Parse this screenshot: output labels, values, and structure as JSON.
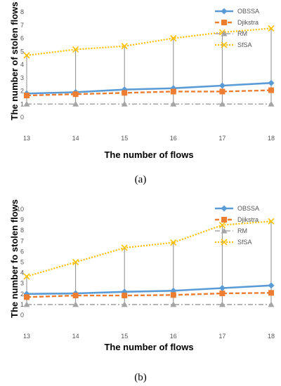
{
  "chart_data": [
    {
      "type": "line",
      "caption": "(a)",
      "x": [
        13,
        14,
        15,
        16,
        17,
        18
      ],
      "xlabel": "The number of flows",
      "ylabel": "The number of stolen flows",
      "ylim": [
        0,
        8
      ],
      "yticks": [
        0,
        1,
        2,
        3,
        4,
        5,
        6,
        7,
        8
      ],
      "grid": "vertical drop lines",
      "legend_position": "top-right",
      "series": [
        {
          "name": "OBSSA",
          "values": [
            1.8,
            1.9,
            2.1,
            2.2,
            2.4,
            2.6
          ],
          "color": "#5b9bd5",
          "marker": "diamond",
          "style": "solid"
        },
        {
          "name": "Djikstra",
          "values": [
            1.65,
            1.75,
            1.85,
            1.95,
            1.95,
            2.05
          ],
          "color": "#ed7d31",
          "marker": "square",
          "style": "dashed"
        },
        {
          "name": "RM",
          "values": [
            1.0,
            1.0,
            1.0,
            1.0,
            1.0,
            1.0
          ],
          "color": "#a5a5a5",
          "marker": "triangle",
          "style": "dashdot"
        },
        {
          "name": "SfSA",
          "values": [
            4.7,
            5.15,
            5.4,
            6.0,
            6.45,
            6.75
          ],
          "color": "#ffc000",
          "marker": "x",
          "style": "dotted"
        }
      ]
    },
    {
      "type": "line",
      "caption": "(b)",
      "x": [
        13,
        14,
        15,
        16,
        17,
        18
      ],
      "xlabel": "The number of flows",
      "ylabel": "The number fo stolen flows",
      "ylim": [
        0,
        10
      ],
      "yticks": [
        0,
        1,
        2,
        3,
        4,
        5,
        6,
        7,
        8,
        9,
        10
      ],
      "grid": "vertical drop lines",
      "legend_position": "top-right",
      "series": [
        {
          "name": "OBSSA",
          "values": [
            2.0,
            2.05,
            2.2,
            2.3,
            2.55,
            2.8
          ],
          "color": "#5b9bd5",
          "marker": "diamond",
          "style": "solid"
        },
        {
          "name": "Djikstra",
          "values": [
            1.7,
            1.85,
            1.85,
            1.9,
            2.05,
            2.1
          ],
          "color": "#ed7d31",
          "marker": "square",
          "style": "dashed"
        },
        {
          "name": "RM",
          "values": [
            1.0,
            1.0,
            1.0,
            1.0,
            1.0,
            1.0
          ],
          "color": "#a5a5a5",
          "marker": "triangle",
          "style": "dashdot"
        },
        {
          "name": "SfSA",
          "values": [
            3.65,
            5.0,
            6.35,
            6.85,
            8.5,
            8.85
          ],
          "color": "#ffc000",
          "marker": "x",
          "style": "dotted"
        }
      ]
    }
  ]
}
